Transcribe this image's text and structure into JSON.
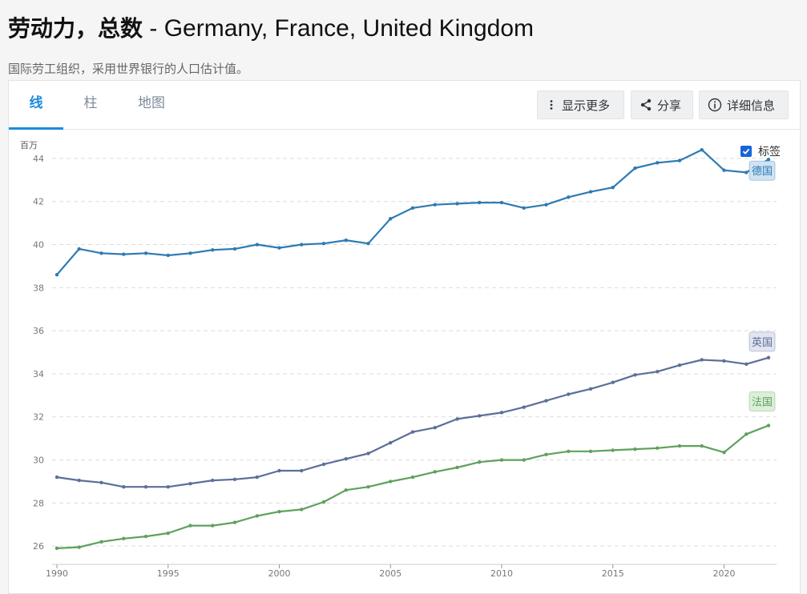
{
  "page": {
    "title_main": "劳动力，总数",
    "title_sep": " - ",
    "title_countries": "Germany, France, United Kingdom",
    "source": "国际劳工组织，采用世界银行的人口估计值。"
  },
  "tabs": [
    {
      "label": "线",
      "active": true
    },
    {
      "label": "柱",
      "active": false
    },
    {
      "label": "地图",
      "active": false
    }
  ],
  "toolbar": {
    "more_label": "显示更多",
    "share_label": "分享",
    "details_label": "详细信息"
  },
  "legend_toggle": {
    "label": "标签",
    "checked": true
  },
  "chart_data": {
    "type": "line",
    "title": "劳动力，总数",
    "ylabel": "百万",
    "xlim": [
      1990,
      2022
    ],
    "ylim": [
      25.3,
      45
    ],
    "yticks": [
      26,
      28,
      30,
      32,
      34,
      36,
      38,
      40,
      42,
      44
    ],
    "xticks": [
      1990,
      1995,
      2000,
      2005,
      2010,
      2015,
      2020
    ],
    "grid": true,
    "x": [
      1990,
      1991,
      1992,
      1993,
      1994,
      1995,
      1996,
      1997,
      1998,
      1999,
      2000,
      2001,
      2002,
      2003,
      2004,
      2005,
      2006,
      2007,
      2008,
      2009,
      2010,
      2011,
      2012,
      2013,
      2014,
      2015,
      2016,
      2017,
      2018,
      2019,
      2020,
      2021,
      2022
    ],
    "series": [
      {
        "name": "德国",
        "color": "#2d7bb3",
        "label_bg": "#cfe3f2",
        "values": [
          38.6,
          39.8,
          39.6,
          39.55,
          39.6,
          39.5,
          39.6,
          39.75,
          39.8,
          40.0,
          39.85,
          40.0,
          40.05,
          40.2,
          40.05,
          41.2,
          41.7,
          41.85,
          41.9,
          41.95,
          41.95,
          41.7,
          41.85,
          42.2,
          42.45,
          42.65,
          43.55,
          43.8,
          43.9,
          44.4,
          43.45,
          43.35,
          43.95
        ]
      },
      {
        "name": "英国",
        "color": "#5b6f99",
        "label_bg": "#e2e5f0",
        "values": [
          29.2,
          29.05,
          28.95,
          28.75,
          28.75,
          28.75,
          28.9,
          29.05,
          29.1,
          29.2,
          29.5,
          29.5,
          29.8,
          30.05,
          30.3,
          30.8,
          31.3,
          31.5,
          31.9,
          32.05,
          32.2,
          32.45,
          32.75,
          33.05,
          33.3,
          33.6,
          33.95,
          34.1,
          34.4,
          34.65,
          34.6,
          34.45,
          34.75
        ]
      },
      {
        "name": "法国",
        "color": "#5fa15d",
        "label_bg": "#dcefd9",
        "values": [
          25.9,
          25.95,
          26.2,
          26.35,
          26.45,
          26.6,
          26.95,
          26.95,
          27.1,
          27.4,
          27.6,
          27.7,
          28.05,
          28.6,
          28.75,
          29.0,
          29.2,
          29.45,
          29.65,
          29.9,
          30.0,
          30.0,
          30.25,
          30.4,
          30.4,
          30.45,
          30.5,
          30.55,
          30.65,
          30.65,
          30.35,
          31.2,
          31.6
        ]
      }
    ]
  }
}
